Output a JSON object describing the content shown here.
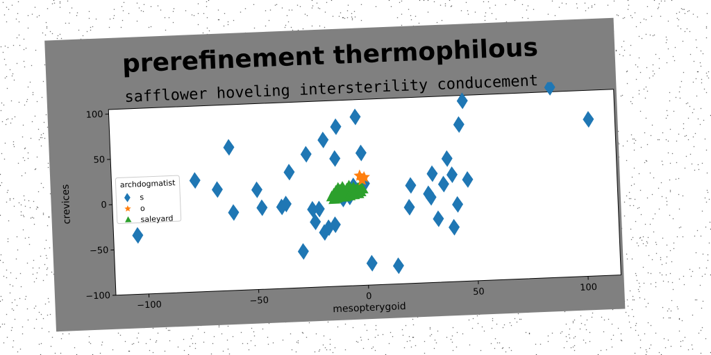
{
  "chart_data": {
    "type": "scatter",
    "title": "prerefinement thermophilous",
    "subtitle": "safflower hoveling intersterility conducement",
    "xlabel": "mesopterygoid",
    "ylabel": "crevices",
    "xlim": [
      -115,
      115
    ],
    "ylim": [
      -100,
      105
    ],
    "xticks": [
      -100,
      -50,
      0,
      50,
      100
    ],
    "yticks": [
      -100,
      -50,
      0,
      50,
      100
    ],
    "grid": false,
    "legend": {
      "title": "archdogmatist",
      "placement": "center-left"
    },
    "colors": {
      "s": "#1f77b4",
      "o": "#ff7f0e",
      "saleyard": "#2ca02c",
      "frame": "#808080"
    },
    "series": [
      {
        "name": "s",
        "marker": "diamond",
        "points": [
          [
            -104,
            -35
          ],
          [
            -77,
            23
          ],
          [
            -67,
            12
          ],
          [
            -60,
            -14
          ],
          [
            -61,
            58
          ],
          [
            -49,
            10
          ],
          [
            -47,
            -10
          ],
          [
            -38,
            -10
          ],
          [
            -36,
            -7
          ],
          [
            -34,
            28
          ],
          [
            -29,
            -60
          ],
          [
            -26,
            47
          ],
          [
            -24,
            -14
          ],
          [
            -23,
            -28
          ],
          [
            -21,
            -14
          ],
          [
            -19,
            -40
          ],
          [
            -18,
            62
          ],
          [
            -17,
            -35
          ],
          [
            -14,
            -32
          ],
          [
            -13,
            41
          ],
          [
            -12,
            76
          ],
          [
            -10,
            -4
          ],
          [
            -7,
            -2
          ],
          [
            -5,
            10
          ],
          [
            -3,
            86
          ],
          [
            -1,
            46
          ],
          [
            0,
            12
          ],
          [
            2,
            -76
          ],
          [
            14,
            -80
          ],
          [
            20,
            -16
          ],
          [
            21,
            8
          ],
          [
            29,
            -2
          ],
          [
            30,
            -6
          ],
          [
            31,
            20
          ],
          [
            33,
            -30
          ],
          [
            36,
            8
          ],
          [
            38,
            36
          ],
          [
            40,
            18
          ],
          [
            40,
            -40
          ],
          [
            42,
            -15
          ],
          [
            44,
            73
          ],
          [
            46,
            99
          ],
          [
            47,
            12
          ],
          [
            86,
            110
          ],
          [
            103,
            73
          ]
        ]
      },
      {
        "name": "o",
        "marker": "star",
        "points": [
          [
            -2,
            21
          ],
          [
            -1,
            16
          ],
          [
            0,
            19
          ]
        ]
      },
      {
        "name": "saleyard",
        "marker": "triangle",
        "points": [
          [
            -14,
            2
          ],
          [
            -13,
            5
          ],
          [
            -12,
            8
          ],
          [
            -11,
            6
          ],
          [
            -10,
            9
          ],
          [
            -9,
            4
          ],
          [
            -8,
            7
          ],
          [
            -7,
            10
          ],
          [
            -6,
            6
          ],
          [
            -5,
            8
          ],
          [
            -4,
            5
          ],
          [
            -3,
            7
          ],
          [
            -2,
            9
          ],
          [
            -1,
            6
          ],
          [
            -12,
            0
          ],
          [
            -10,
            2
          ],
          [
            -8,
            1
          ],
          [
            -6,
            3
          ],
          [
            -4,
            2
          ],
          [
            -2,
            3
          ],
          [
            -13,
            -3
          ],
          [
            -11,
            -2
          ],
          [
            -9,
            -2
          ],
          [
            -7,
            -1
          ],
          [
            -5,
            0
          ],
          [
            -3,
            1
          ],
          [
            -15,
            -1
          ],
          [
            -14,
            -4
          ]
        ]
      }
    ]
  }
}
